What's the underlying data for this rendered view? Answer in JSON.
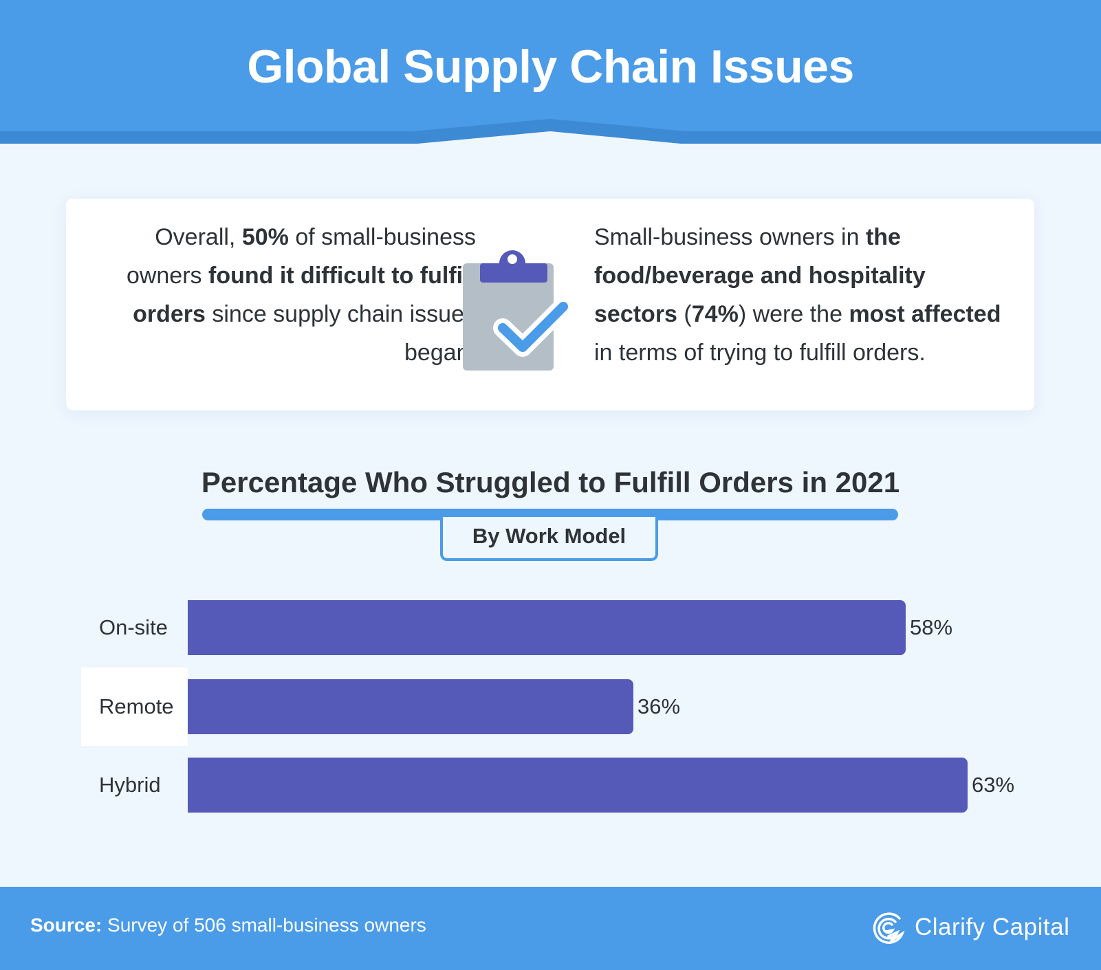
{
  "header": {
    "title": "Global Supply Chain Issues"
  },
  "card": {
    "left": {
      "p1": "Overall, ",
      "b1": "50%",
      "p2": " of small-business owners ",
      "b2": "found it difficult to fulfill orders",
      "p3": " since supply chain issues began."
    },
    "right": {
      "p1": "Small-business owners in ",
      "b1": "the food/beverage and hospitality sectors",
      "p2": " (",
      "b2": "74%",
      "p3": ") were the ",
      "b3": "most affected",
      "p4": " in terms of trying to fulfill orders."
    }
  },
  "chart_data": {
    "type": "bar",
    "orientation": "horizontal",
    "title": "Percentage Who Struggled to Fulfill Orders in 2021",
    "subtitle": "By Work Model",
    "categories": [
      "On-site",
      "Remote",
      "Hybrid"
    ],
    "values": [
      58,
      36,
      63
    ],
    "value_labels": [
      "58%",
      "36%",
      "63%"
    ],
    "unit": "%",
    "bar_color": "#5559b8",
    "grid": false
  },
  "footer": {
    "source_label": "Source:",
    "source_text": " Survey of 506 small-business owners",
    "brand": "Clarify Capital"
  },
  "colors": {
    "primary": "#4a9be8",
    "bar": "#5559b8",
    "background": "#eef6fe"
  }
}
